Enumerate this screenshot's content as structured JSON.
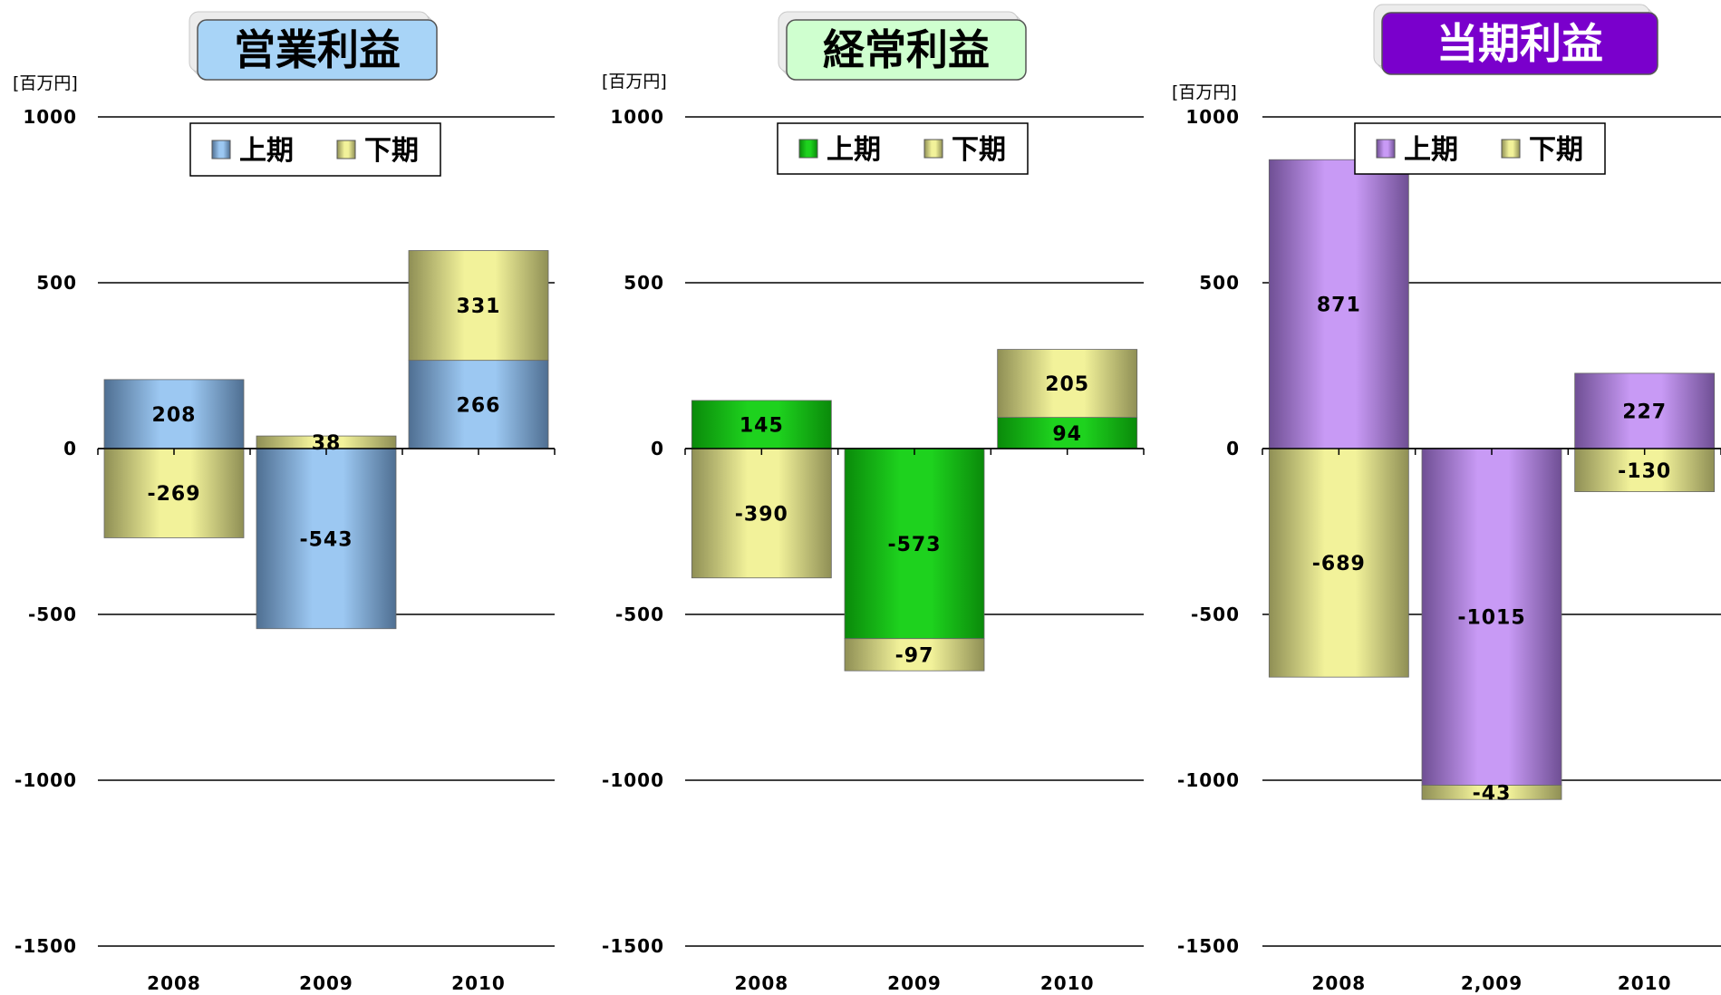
{
  "colors": {
    "blue": "#9cc8f2",
    "blue_dark": "#4f6f92",
    "green": "#1ed21e",
    "green_dark": "#0a8a0a",
    "purple": "#c89af5",
    "purple_dark": "#6f4f94",
    "yellow": "#f2f29a",
    "yellow_dark": "#8f8f55",
    "title_blue_bg": "#a8d4f7",
    "title_green_bg": "#cfffcf",
    "title_purple_bg": "#7a00cc"
  },
  "chart_data": [
    {
      "type": "bar",
      "title": "営業利益",
      "unit": "[百万円]",
      "categories": [
        "2008",
        "2009",
        "2010"
      ],
      "ylim": [
        -1500,
        1000
      ],
      "yticks": [
        "1000",
        "500",
        "0",
        "-500",
        "-1000",
        "-1500"
      ],
      "legend": [
        "上期",
        "下期"
      ],
      "series": [
        {
          "name": "上期",
          "values": [
            208,
            -543,
            266
          ],
          "labels": [
            "208",
            "-543",
            "266"
          ]
        },
        {
          "name": "下期",
          "values": [
            -269,
            38,
            331
          ],
          "labels": [
            "-269",
            "38",
            "331"
          ]
        }
      ]
    },
    {
      "type": "bar",
      "title": "経常利益",
      "unit": "[百万円]",
      "categories": [
        "2008",
        "2009",
        "2010"
      ],
      "ylim": [
        -1500,
        1000
      ],
      "yticks": [
        "1000",
        "500",
        "0",
        "-500",
        "-1000",
        "-1500"
      ],
      "legend": [
        "上期",
        "下期"
      ],
      "series": [
        {
          "name": "上期",
          "values": [
            145,
            -573,
            94
          ],
          "labels": [
            "145",
            "-573",
            "94"
          ]
        },
        {
          "name": "下期",
          "values": [
            -390,
            -97,
            205
          ],
          "labels": [
            "-390",
            "-97",
            "205"
          ]
        }
      ]
    },
    {
      "type": "bar",
      "title": "当期利益",
      "unit": "[百万円]",
      "categories": [
        "2008",
        "2,009",
        "2010"
      ],
      "ylim": [
        -1500,
        1000
      ],
      "yticks": [
        "1000",
        "500",
        "0",
        "-500",
        "-1000",
        "-1500"
      ],
      "legend": [
        "上期",
        "下期"
      ],
      "series": [
        {
          "name": "上期",
          "values": [
            871,
            -1015,
            227
          ],
          "labels": [
            "871",
            "-1015",
            "227"
          ]
        },
        {
          "name": "下期",
          "values": [
            -689,
            -43,
            -130
          ],
          "labels": [
            "-689",
            "-43",
            "-130"
          ]
        }
      ]
    }
  ]
}
